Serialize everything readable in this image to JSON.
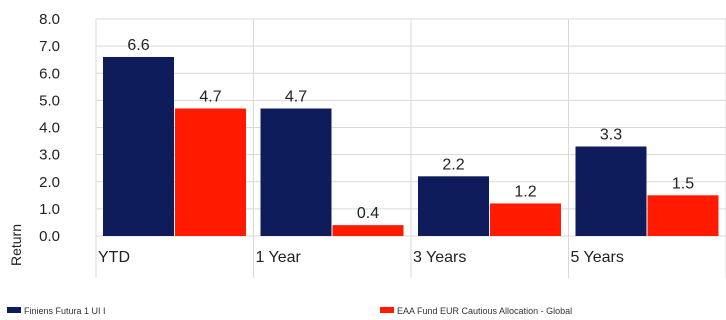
{
  "chart_data": {
    "type": "bar",
    "categories": [
      "YTD",
      "1 Year",
      "3 Years",
      "5 Years"
    ],
    "series": [
      {
        "name": "Finiens Futura 1 UI I",
        "color": "#0e1c5c",
        "values": [
          6.6,
          4.7,
          2.2,
          3.3
        ]
      },
      {
        "name": "EAA Fund EUR Cautious Allocation - Global",
        "color": "#ff1a00",
        "values": [
          4.7,
          0.4,
          1.2,
          1.5
        ]
      }
    ],
    "title": "",
    "xlabel": "",
    "ylabel": "Return",
    "ylim": [
      0,
      8
    ],
    "yticks": [
      "0.0",
      "1.0",
      "2.0",
      "3.0",
      "4.0",
      "5.0",
      "6.0",
      "7.0",
      "8.0"
    ],
    "grid": true,
    "legend_position": "bottom"
  }
}
